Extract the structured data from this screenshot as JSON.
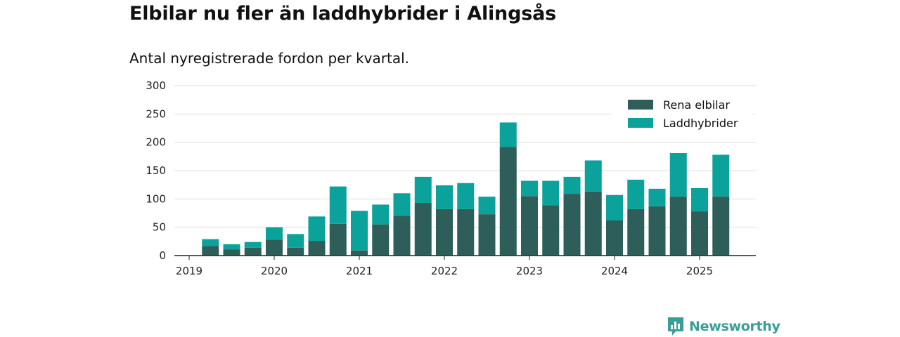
{
  "title": "Elbilar nu fler än laddhybrider i Alingsås",
  "subtitle": "Antal nyregistrerade fordon per kvartal.",
  "brand": "Newsworthy",
  "colors": {
    "electric": "#2e5e59",
    "hybrid": "#0aa29b",
    "grid": "#dddddd",
    "axis": "#222222"
  },
  "chart_data": {
    "type": "bar",
    "stacked": true,
    "categories": [
      "2019 Q1",
      "2019 Q2",
      "2019 Q3",
      "2019 Q4",
      "2020 Q1",
      "2020 Q2",
      "2020 Q3",
      "2020 Q4",
      "2021 Q1",
      "2021 Q2",
      "2021 Q3",
      "2021 Q4",
      "2022 Q1",
      "2022 Q2",
      "2022 Q3",
      "2022 Q4",
      "2023 Q1",
      "2023 Q2",
      "2023 Q3",
      "2023 Q4",
      "2024 Q1",
      "2024 Q2",
      "2024 Q3",
      "2024 Q4",
      "2025 Q1",
      "2025 Q2"
    ],
    "series": [
      {
        "name": "Rena elbilar",
        "values": [
          null,
          17,
          11,
          14,
          28,
          14,
          26,
          56,
          9,
          55,
          70,
          93,
          82,
          82,
          73,
          192,
          105,
          89,
          109,
          113,
          62,
          82,
          87,
          104,
          78,
          104
        ]
      },
      {
        "name": "Laddhybrider",
        "values": [
          null,
          12,
          9,
          10,
          22,
          24,
          43,
          66,
          70,
          35,
          40,
          46,
          42,
          46,
          31,
          43,
          27,
          43,
          30,
          55,
          45,
          52,
          31,
          77,
          41,
          74
        ]
      }
    ],
    "x_ticks": [
      "2019",
      "2020",
      "2021",
      "2022",
      "2023",
      "2024",
      "2025"
    ],
    "y_ticks": [
      "0",
      "50",
      "100",
      "150",
      "200",
      "250",
      "300"
    ],
    "ylim": [
      0,
      300
    ],
    "grid": true,
    "legend_position": "top-right",
    "xlabel": "",
    "ylabel": ""
  }
}
